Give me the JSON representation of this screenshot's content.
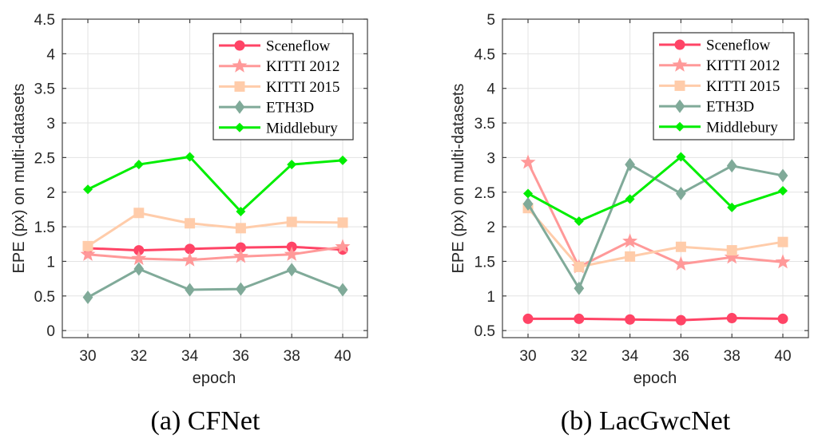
{
  "chart_data": [
    {
      "type": "line",
      "caption": "(a) CFNet",
      "title": "",
      "xlabel": "epoch",
      "ylabel": "EPE (px) on multi-datasets",
      "x": [
        30,
        32,
        34,
        36,
        38,
        40
      ],
      "xticks": [
        "30",
        "32",
        "34",
        "36",
        "38",
        "40"
      ],
      "xlim": [
        29,
        41
      ],
      "ylim": [
        -0.03,
        4.5
      ],
      "yticks": [
        "0",
        "0.5",
        "1",
        "1.5",
        "2",
        "2.5",
        "3",
        "3.5",
        "4",
        "4.5"
      ],
      "ytick_values": [
        0,
        0.5,
        1,
        1.5,
        2,
        2.5,
        3,
        3.5,
        4,
        4.5
      ],
      "grid": true,
      "legend_position": "top-right",
      "series": [
        {
          "name": "Sceneflow",
          "color": "#ff4466",
          "marker": "circle",
          "values": [
            1.19,
            1.16,
            1.18,
            1.2,
            1.21,
            1.17
          ]
        },
        {
          "name": "KITTI 2012",
          "color": "#ff9999",
          "marker": "star",
          "values": [
            1.1,
            1.04,
            1.02,
            1.07,
            1.1,
            1.21
          ]
        },
        {
          "name": "KITTI 2015",
          "color": "#ffccaa",
          "marker": "square",
          "values": [
            1.22,
            1.7,
            1.55,
            1.48,
            1.57,
            1.56
          ]
        },
        {
          "name": "ETH3D",
          "color": "#80aa99",
          "marker": "diamond",
          "values": [
            0.48,
            0.89,
            0.59,
            0.6,
            0.88,
            0.59
          ]
        },
        {
          "name": "Middlebury",
          "color": "#00ee00",
          "marker": "small-diamond",
          "values": [
            2.04,
            2.4,
            2.51,
            1.72,
            2.4,
            2.46
          ]
        }
      ]
    },
    {
      "type": "line",
      "caption": "(b) LacGwcNet",
      "title": "",
      "xlabel": "epoch",
      "ylabel": "EPE (px) on multi-datasets",
      "x": [
        30,
        32,
        34,
        36,
        38,
        40
      ],
      "xticks": [
        "30",
        "32",
        "34",
        "36",
        "38",
        "40"
      ],
      "xlim": [
        29,
        41
      ],
      "ylim": [
        0.4,
        5
      ],
      "yticks": [
        "0.5",
        "1",
        "1.5",
        "2",
        "2.5",
        "3",
        "3.5",
        "4",
        "4.5",
        "5"
      ],
      "ytick_values": [
        0.5,
        1,
        1.5,
        2,
        2.5,
        3,
        3.5,
        4,
        4.5,
        5
      ],
      "grid": true,
      "legend_position": "top-right",
      "series": [
        {
          "name": "Sceneflow",
          "color": "#ff4466",
          "marker": "circle",
          "values": [
            0.67,
            0.67,
            0.66,
            0.65,
            0.68,
            0.67
          ]
        },
        {
          "name": "KITTI 2012",
          "color": "#ff9999",
          "marker": "star",
          "values": [
            2.93,
            1.42,
            1.79,
            1.46,
            1.56,
            1.49
          ]
        },
        {
          "name": "KITTI 2015",
          "color": "#ffccaa",
          "marker": "square",
          "values": [
            2.27,
            1.42,
            1.57,
            1.71,
            1.66,
            1.78
          ]
        },
        {
          "name": "ETH3D",
          "color": "#80aa99",
          "marker": "diamond",
          "values": [
            2.33,
            1.11,
            2.9,
            2.48,
            2.88,
            2.74
          ]
        },
        {
          "name": "Middlebury",
          "color": "#00ee00",
          "marker": "small-diamond",
          "values": [
            2.48,
            2.08,
            2.4,
            3.01,
            2.28,
            2.52
          ]
        }
      ]
    }
  ]
}
